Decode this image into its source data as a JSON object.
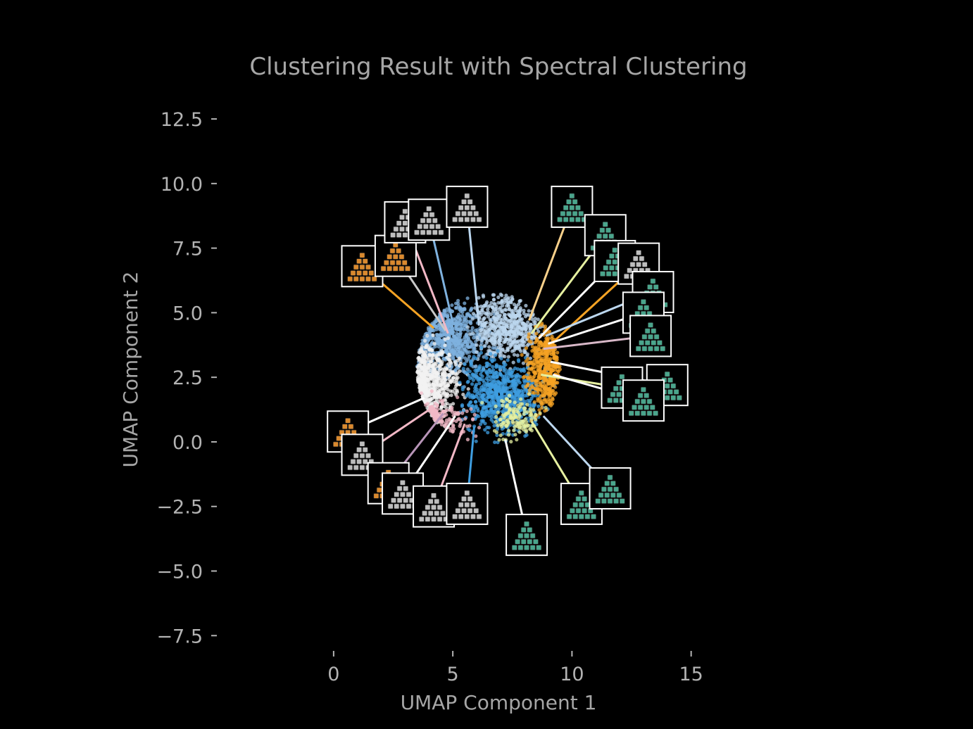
{
  "chart_data": {
    "type": "scatter",
    "title": "Clustering Result with Spectral Clustering",
    "xlabel": "UMAP Component 1",
    "ylabel": "UMAP Component 2",
    "xlim": [
      -4.9,
      20.8
    ],
    "ylim": [
      -8.5,
      13.7
    ],
    "xticks": [
      0,
      5,
      10,
      15
    ],
    "xtick_labels": [
      "0",
      "5",
      "10",
      "15"
    ],
    "yticks": [
      12.5,
      10.0,
      7.5,
      5.0,
      2.5,
      0.0,
      -2.5,
      -5.0,
      -7.5
    ],
    "ytick_labels": [
      "12.5",
      "10.0",
      "7.5",
      "5.0",
      "2.5",
      "0.0",
      "−2.5",
      "−5.0",
      "−7.5"
    ],
    "grid": false,
    "clusters": [
      {
        "color": "#7fb2df",
        "center": [
          4.9,
          4.0
        ],
        "spread": [
          0.9,
          0.9
        ],
        "points": 650
      },
      {
        "color": "#bcd7ef",
        "center": [
          7.3,
          4.4
        ],
        "spread": [
          0.9,
          0.8
        ],
        "points": 550
      },
      {
        "color": "#f1f1f1",
        "center": [
          4.1,
          2.3
        ],
        "spread": [
          0.8,
          0.9
        ],
        "points": 650
      },
      {
        "color": "#3f9ee0",
        "center": [
          7.1,
          1.8
        ],
        "spread": [
          1.0,
          0.9
        ],
        "points": 700
      },
      {
        "color": "#f5a324",
        "center": [
          8.9,
          2.9
        ],
        "spread": [
          0.5,
          1.1
        ],
        "points": 420
      },
      {
        "color": "#e6f0a0",
        "center": [
          7.6,
          0.9
        ],
        "spread": [
          0.7,
          0.5
        ],
        "points": 140
      },
      {
        "color": "#f2b8c6",
        "center": [
          4.6,
          0.9
        ],
        "spread": [
          0.9,
          0.5
        ],
        "points": 120
      }
    ],
    "thumbnails": [
      {
        "tile": "#d9892e",
        "img": [
          1.2,
          6.8
        ],
        "pt": [
          4.2,
          4.4
        ],
        "line": "#f5a324"
      },
      {
        "tile": "#d9892e",
        "img": [
          2.6,
          7.2
        ],
        "pt": [
          4.7,
          4.3
        ],
        "line": "#c8c8c8"
      },
      {
        "tile": "#bdbdbd",
        "img": [
          3.0,
          8.5
        ],
        "pt": [
          4.8,
          4.2
        ],
        "line": "#f2b8c6"
      },
      {
        "tile": "#bdbdbd",
        "img": [
          4.0,
          8.6
        ],
        "pt": [
          5.0,
          4.6
        ],
        "line": "#7fb2df"
      },
      {
        "tile": "#bdbdbd",
        "img": [
          5.6,
          9.1
        ],
        "pt": [
          6.1,
          4.5
        ],
        "line": "#bcd7ef"
      },
      {
        "tile": "#4aa58c",
        "img": [
          10.0,
          9.1
        ],
        "pt": [
          8.2,
          4.7
        ],
        "line": "#f8d08a"
      },
      {
        "tile": "#4aa58c",
        "img": [
          11.4,
          8.0
        ],
        "pt": [
          8.3,
          4.2
        ],
        "line": "#e6f0a0"
      },
      {
        "tile": "#4aa58c",
        "img": [
          11.8,
          7.0
        ],
        "pt": [
          8.6,
          4.0
        ],
        "line": "#ffffff"
      },
      {
        "tile": "#bdbdbd",
        "img": [
          12.8,
          6.9
        ],
        "pt": [
          8.9,
          3.6
        ],
        "line": "#f5a324"
      },
      {
        "tile": "#4aa58c",
        "img": [
          13.4,
          5.8
        ],
        "pt": [
          8.9,
          4.1
        ],
        "line": "#bcd7ef"
      },
      {
        "tile": "#4aa58c",
        "img": [
          13.0,
          5.0
        ],
        "pt": [
          9.0,
          3.8
        ],
        "line": "#ffffff"
      },
      {
        "tile": "#4aa58c",
        "img": [
          13.3,
          4.1
        ],
        "pt": [
          8.8,
          3.6
        ],
        "line": "#d8b8c8"
      },
      {
        "tile": "#4aa58c",
        "img": [
          14.0,
          2.2
        ],
        "pt": [
          9.1,
          3.1
        ],
        "line": "#ffffff"
      },
      {
        "tile": "#4aa58c",
        "img": [
          12.1,
          2.1
        ],
        "pt": [
          8.7,
          2.6
        ],
        "line": "#e6f0a0"
      },
      {
        "tile": "#4aa58c",
        "img": [
          13.0,
          1.6
        ],
        "pt": [
          9.2,
          2.6
        ],
        "line": "#ffffff"
      },
      {
        "tile": "#d9892e",
        "img": [
          0.6,
          0.4
        ],
        "pt": [
          3.8,
          1.7
        ],
        "line": "#ffffff"
      },
      {
        "tile": "#bdbdbd",
        "img": [
          1.2,
          -0.5
        ],
        "pt": [
          4.1,
          1.3
        ],
        "line": "#f2b8c6"
      },
      {
        "tile": "#d9892e",
        "img": [
          2.3,
          -1.6
        ],
        "pt": [
          4.6,
          1.1
        ],
        "line": "#b895b8"
      },
      {
        "tile": "#bdbdbd",
        "img": [
          2.9,
          -2.0
        ],
        "pt": [
          5.1,
          1.0
        ],
        "line": "#ffffff"
      },
      {
        "tile": "#bdbdbd",
        "img": [
          4.2,
          -2.5
        ],
        "pt": [
          5.5,
          0.7
        ],
        "line": "#f2b8c6"
      },
      {
        "tile": "#bdbdbd",
        "img": [
          5.6,
          -2.4
        ],
        "pt": [
          5.9,
          0.6
        ],
        "line": "#3f9ee0"
      },
      {
        "tile": "#4aa58c",
        "img": [
          8.1,
          -3.6
        ],
        "pt": [
          7.2,
          0.1
        ],
        "line": "#ffffff"
      },
      {
        "tile": "#4aa58c",
        "img": [
          10.4,
          -2.4
        ],
        "pt": [
          8.3,
          0.8
        ],
        "line": "#e6f0a0"
      },
      {
        "tile": "#4aa58c",
        "img": [
          11.6,
          -1.8
        ],
        "pt": [
          8.8,
          1.0
        ],
        "line": "#bcd7ef"
      }
    ]
  }
}
